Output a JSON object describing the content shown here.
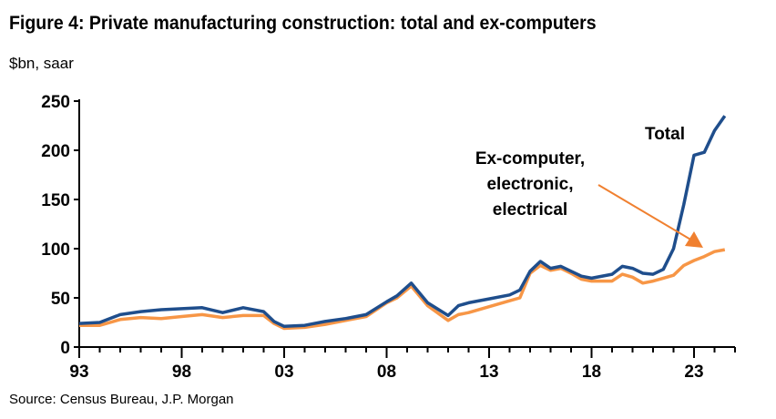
{
  "title": "Figure 4: Private manufacturing construction: total and ex-computers",
  "subtitle": "$bn, saar",
  "source": "Source: Census Bureau, J.P. Morgan",
  "chart_data": {
    "type": "line",
    "xlim": [
      1993,
      2025
    ],
    "ylim": [
      0,
      250
    ],
    "yticks": [
      0,
      50,
      100,
      150,
      200,
      250
    ],
    "xticks": [
      {
        "value": 1993,
        "label": "93"
      },
      {
        "value": 1998,
        "label": "98"
      },
      {
        "value": 2003,
        "label": "03"
      },
      {
        "value": 2008,
        "label": "08"
      },
      {
        "value": 2013,
        "label": "13"
      },
      {
        "value": 2018,
        "label": "18"
      },
      {
        "value": 2023,
        "label": "23"
      }
    ],
    "grid": false,
    "annotations": [
      {
        "text": "Total",
        "series": 0
      },
      {
        "text": [
          "Ex-computer,",
          "electronic,",
          "electrical"
        ],
        "series": 1
      }
    ],
    "x": [
      1993,
      1994,
      1995,
      1996,
      1997,
      1998,
      1999,
      2000,
      2001,
      2002,
      2002.5,
      2003,
      2004,
      2005,
      2006,
      2007,
      2008,
      2008.5,
      2009.2,
      2010,
      2011,
      2011.5,
      2012,
      2013,
      2014,
      2014.5,
      2015,
      2015.5,
      2016,
      2016.5,
      2017,
      2017.5,
      2018,
      2019,
      2019.5,
      2020,
      2020.5,
      2021,
      2021.5,
      2022,
      2022.5,
      2023,
      2023.5,
      2024,
      2024.5
    ],
    "series": [
      {
        "name": "Total",
        "color": "#1f4e8c",
        "values": [
          24,
          25,
          33,
          36,
          38,
          39,
          40,
          35,
          40,
          36,
          26,
          21,
          22,
          26,
          29,
          33,
          46,
          52,
          65,
          45,
          32,
          42,
          45,
          49,
          53,
          58,
          77,
          87,
          80,
          82,
          77,
          72,
          70,
          74,
          82,
          80,
          75,
          74,
          79,
          100,
          145,
          195,
          198,
          220,
          235
        ]
      },
      {
        "name": "Ex-computer, electronic, electrical",
        "color": "#f79646",
        "values": [
          22,
          22,
          28,
          30,
          29,
          31,
          33,
          30,
          32,
          32,
          24,
          19,
          20,
          23,
          27,
          31,
          45,
          50,
          62,
          42,
          27,
          33,
          35,
          41,
          47,
          50,
          75,
          83,
          78,
          80,
          75,
          69,
          67,
          67,
          74,
          71,
          65,
          67,
          70,
          73,
          83,
          88,
          92,
          97,
          99
        ]
      }
    ]
  }
}
